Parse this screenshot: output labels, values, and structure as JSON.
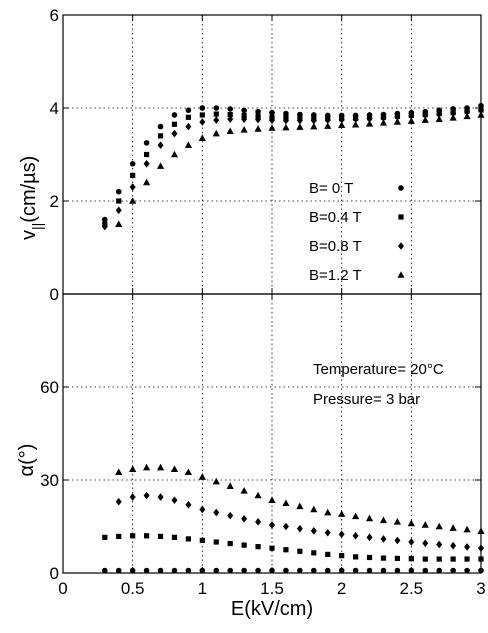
{
  "chart_data": [
    {
      "type": "scatter",
      "title": "",
      "xlabel": "",
      "ylabel_main": "v",
      "ylabel_sub": "||",
      "ylabel_unit": "(cm/µs)",
      "xlim": [
        0,
        3
      ],
      "ylim": [
        0,
        6
      ],
      "xticks": [
        "",
        "",
        "",
        "",
        "",
        "",
        ""
      ],
      "yticks": [
        "0",
        "2",
        "4",
        "6"
      ],
      "grid": true,
      "legend_position": "lower-right",
      "series": [
        {
          "name": "B=  0 T",
          "marker": "circle",
          "x": [
            0.3,
            0.4,
            0.5,
            0.6,
            0.7,
            0.8,
            0.9,
            1.0,
            1.1,
            1.2,
            1.3,
            1.4,
            1.5,
            1.6,
            1.7,
            1.8,
            1.9,
            2.0,
            2.1,
            2.2,
            2.3,
            2.4,
            2.5,
            2.6,
            2.7,
            2.8,
            2.9,
            3.0
          ],
          "y": [
            1.6,
            2.2,
            2.8,
            3.25,
            3.6,
            3.85,
            3.95,
            4.0,
            4.0,
            3.98,
            3.95,
            3.92,
            3.9,
            3.88,
            3.86,
            3.85,
            3.84,
            3.84,
            3.84,
            3.85,
            3.86,
            3.88,
            3.9,
            3.92,
            3.95,
            3.98,
            4.0,
            4.05
          ]
        },
        {
          "name": "B=0.4 T",
          "marker": "square",
          "x": [
            0.3,
            0.4,
            0.5,
            0.6,
            0.7,
            0.8,
            0.9,
            1.0,
            1.1,
            1.2,
            1.3,
            1.4,
            1.5,
            1.6,
            1.7,
            1.8,
            1.9,
            2.0,
            2.1,
            2.2,
            2.3,
            2.4,
            2.5,
            2.6,
            2.7,
            2.8,
            2.9,
            3.0
          ],
          "y": [
            1.5,
            2.0,
            2.55,
            3.0,
            3.4,
            3.65,
            3.8,
            3.85,
            3.87,
            3.86,
            3.84,
            3.82,
            3.8,
            3.79,
            3.78,
            3.77,
            3.77,
            3.77,
            3.78,
            3.79,
            3.8,
            3.82,
            3.84,
            3.86,
            3.88,
            3.9,
            3.93,
            3.96
          ]
        },
        {
          "name": "B=0.8 T",
          "marker": "diamond",
          "x": [
            0.3,
            0.4,
            0.5,
            0.6,
            0.7,
            0.8,
            0.9,
            1.0,
            1.1,
            1.2,
            1.3,
            1.4,
            1.5,
            1.6,
            1.7,
            1.8,
            1.9,
            2.0,
            2.1,
            2.2,
            2.3,
            2.4,
            2.5,
            2.6,
            2.7,
            2.8,
            2.9,
            3.0
          ],
          "y": [
            1.45,
            1.8,
            2.3,
            2.8,
            3.2,
            3.45,
            3.6,
            3.7,
            3.74,
            3.76,
            3.76,
            3.75,
            3.74,
            3.73,
            3.73,
            3.73,
            3.74,
            3.75,
            3.76,
            3.77,
            3.79,
            3.81,
            3.83,
            3.85,
            3.87,
            3.89,
            3.92,
            3.95
          ]
        },
        {
          "name": "B=1.2 T",
          "marker": "triangle",
          "x": [
            0.4,
            0.5,
            0.6,
            0.7,
            0.8,
            0.9,
            1.0,
            1.1,
            1.2,
            1.3,
            1.4,
            1.5,
            1.6,
            1.7,
            1.8,
            1.9,
            2.0,
            2.1,
            2.2,
            2.3,
            2.4,
            2.5,
            2.6,
            2.7,
            2.8,
            2.9,
            3.0
          ],
          "y": [
            1.5,
            2.0,
            2.4,
            2.75,
            3.0,
            3.2,
            3.35,
            3.45,
            3.5,
            3.53,
            3.55,
            3.57,
            3.58,
            3.59,
            3.6,
            3.61,
            3.63,
            3.64,
            3.66,
            3.68,
            3.7,
            3.72,
            3.74,
            3.76,
            3.79,
            3.82,
            3.85
          ]
        }
      ]
    },
    {
      "type": "scatter",
      "title": "",
      "xlabel": "E(kV/cm)",
      "ylabel_main": "α(°)",
      "xlim": [
        0,
        3
      ],
      "ylim": [
        0,
        90
      ],
      "xticks": [
        "0",
        "0.5",
        "1",
        "1.5",
        "2",
        "2.5",
        "3"
      ],
      "yticks": [
        "0",
        "30",
        "60"
      ],
      "grid": true,
      "annotations": [
        "Temperature= 20°C",
        "Pressure= 3 bar"
      ],
      "series": [
        {
          "marker": "circle",
          "x": [
            0.3,
            0.4,
            0.5,
            0.6,
            0.7,
            0.8,
            0.9,
            1.0,
            1.1,
            1.2,
            1.3,
            1.4,
            1.5,
            1.6,
            1.7,
            1.8,
            1.9,
            2.0,
            2.1,
            2.2,
            2.3,
            2.4,
            2.5,
            2.6,
            2.7,
            2.8,
            2.9,
            3.0
          ],
          "y": [
            0.8,
            0.8,
            0.8,
            0.8,
            0.8,
            0.8,
            0.8,
            0.8,
            0.8,
            0.8,
            0.8,
            0.8,
            0.8,
            0.8,
            0.8,
            0.8,
            0.8,
            0.8,
            0.8,
            0.8,
            0.8,
            0.8,
            0.8,
            0.8,
            0.8,
            0.8,
            0.8,
            0.8
          ]
        },
        {
          "marker": "square",
          "x": [
            0.3,
            0.4,
            0.5,
            0.6,
            0.7,
            0.8,
            0.9,
            1.0,
            1.1,
            1.2,
            1.3,
            1.4,
            1.5,
            1.6,
            1.7,
            1.8,
            1.9,
            2.0,
            2.1,
            2.2,
            2.3,
            2.4,
            2.5,
            2.6,
            2.7,
            2.8,
            2.9,
            3.0
          ],
          "y": [
            11.5,
            11.8,
            12.0,
            12.0,
            11.8,
            11.5,
            11.0,
            10.5,
            10.0,
            9.5,
            9.0,
            8.5,
            8.0,
            7.5,
            7.0,
            6.5,
            6.0,
            5.6,
            5.2,
            5.0,
            4.8,
            4.7,
            4.6,
            4.5,
            4.5,
            4.5,
            4.5,
            4.5
          ]
        },
        {
          "marker": "diamond",
          "x": [
            0.4,
            0.5,
            0.6,
            0.7,
            0.8,
            0.9,
            1.0,
            1.1,
            1.2,
            1.3,
            1.4,
            1.5,
            1.6,
            1.7,
            1.8,
            1.9,
            2.0,
            2.1,
            2.2,
            2.3,
            2.4,
            2.5,
            2.6,
            2.7,
            2.8,
            2.9,
            3.0
          ],
          "y": [
            23.0,
            24.5,
            25.0,
            24.5,
            23.5,
            22.0,
            20.5,
            19.5,
            18.5,
            17.5,
            16.5,
            15.5,
            15.0,
            14.3,
            13.6,
            13.0,
            12.5,
            12.0,
            11.5,
            11.0,
            10.5,
            10.0,
            9.6,
            9.2,
            8.8,
            8.4,
            8.0
          ]
        },
        {
          "marker": "triangle",
          "x": [
            0.4,
            0.5,
            0.6,
            0.7,
            0.8,
            0.9,
            1.0,
            1.1,
            1.2,
            1.3,
            1.4,
            1.5,
            1.6,
            1.7,
            1.8,
            1.9,
            2.0,
            2.1,
            2.2,
            2.3,
            2.4,
            2.5,
            2.6,
            2.7,
            2.8,
            2.9,
            3.0
          ],
          "y": [
            32.5,
            33.5,
            34.0,
            34.0,
            33.5,
            32.5,
            31.0,
            29.5,
            28.0,
            26.5,
            25.0,
            23.5,
            22.5,
            21.5,
            20.5,
            19.5,
            19.0,
            18.3,
            17.6,
            17.0,
            16.5,
            16.0,
            15.5,
            15.0,
            14.5,
            14.0,
            13.5
          ]
        }
      ]
    }
  ]
}
